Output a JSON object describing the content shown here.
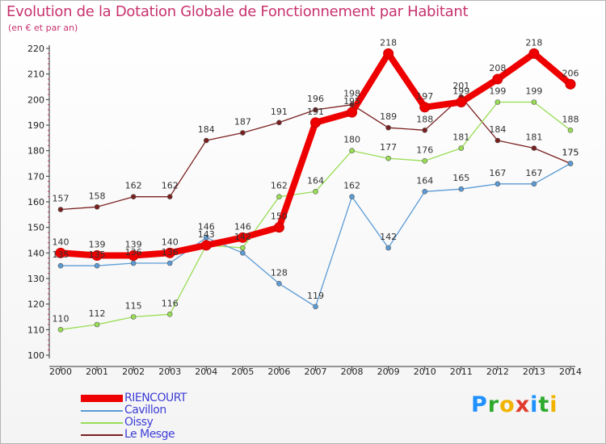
{
  "title": "Evolution de la Dotation Globale de Fonctionnement par Habitant",
  "subtitle": "(en € et par an)",
  "brand": {
    "letters": [
      {
        "char": "P",
        "color": "#1e90ff"
      },
      {
        "char": "r",
        "color": "#2eaa2e"
      },
      {
        "char": "o",
        "color": "#f0b400"
      },
      {
        "char": "x",
        "color": "#e03a2c"
      },
      {
        "char": "i",
        "color": "#1e90ff"
      },
      {
        "char": "t",
        "color": "#2eaa2e"
      },
      {
        "char": "i",
        "color": "#f0b400"
      }
    ]
  },
  "chart_data": {
    "type": "line",
    "title": "Evolution de la Dotation Globale de Fonctionnement par Habitant",
    "ylabel": "(en € et par an)",
    "x": [
      2000,
      2001,
      2002,
      2003,
      2004,
      2005,
      2006,
      2007,
      2008,
      2009,
      2010,
      2011,
      2012,
      2013,
      2014
    ],
    "ylim": [
      100,
      220
    ],
    "yticks": [
      100,
      110,
      120,
      130,
      140,
      150,
      160,
      170,
      180,
      190,
      200,
      210,
      220
    ],
    "grid": false,
    "legend_position": "bottom-left",
    "series": [
      {
        "name": "RIENCOURT",
        "color": "#ee0000",
        "thick": true,
        "values": [
          140,
          139,
          139,
          140,
          143,
          146,
          150,
          191,
          195,
          218,
          197,
          199,
          208,
          218,
          206
        ],
        "labels": [
          "140",
          "139",
          "139",
          "140",
          "",
          "146",
          "150",
          "",
          "",
          "218",
          "197",
          "",
          "208",
          "218",
          "206"
        ]
      },
      {
        "name": "Cavillon",
        "color": "#5b9bd5",
        "thick": false,
        "values": [
          135,
          135,
          136,
          136,
          146,
          140,
          128,
          119,
          162,
          142,
          164,
          165,
          167,
          167,
          175
        ],
        "labels": [
          "135",
          "135",
          "136",
          "136",
          "146",
          "",
          "128",
          "119",
          "162",
          "142",
          "164",
          "165",
          "167",
          "167",
          "175"
        ]
      },
      {
        "name": "Oissy",
        "color": "#99dd55",
        "thick": false,
        "values": [
          110,
          112,
          115,
          116,
          143,
          142,
          162,
          164,
          180,
          177,
          176,
          181,
          199,
          199,
          188
        ],
        "labels": [
          "110",
          "112",
          "115",
          "116",
          "143",
          "142",
          "162",
          "164",
          "180",
          "177",
          "176",
          "181",
          "199",
          "199",
          "188"
        ]
      },
      {
        "name": "Le Mesge",
        "color": "#7a1f1f",
        "thick": false,
        "values": [
          157,
          158,
          162,
          162,
          184,
          187,
          191,
          196,
          198,
          189,
          188,
          201,
          184,
          181,
          175
        ],
        "labels": [
          "157",
          "158",
          "162",
          "162",
          "184",
          "187",
          "191",
          "196",
          "198",
          "189",
          "188",
          "201",
          "184",
          "181",
          "175"
        ]
      }
    ],
    "extra_labels": [
      {
        "text": "191",
        "x": 2007,
        "y": 191
      },
      {
        "text": "195",
        "x": 2008,
        "y": 195
      },
      {
        "text": "199",
        "x": 2011,
        "y": 199
      }
    ]
  }
}
